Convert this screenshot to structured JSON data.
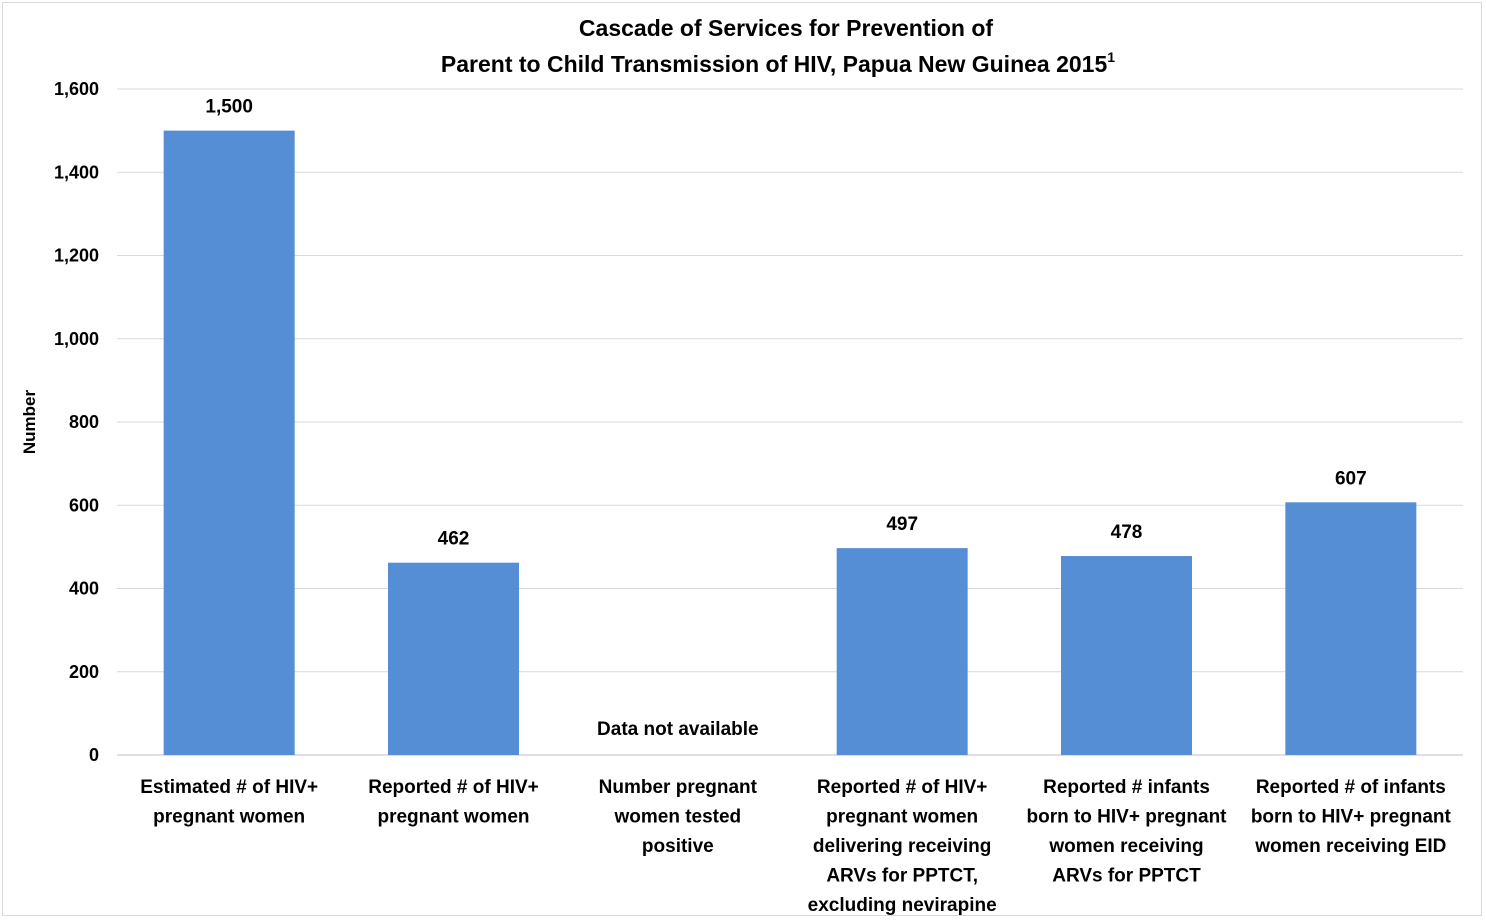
{
  "chart_data": {
    "type": "bar",
    "title_lines": [
      "Cascade of Services for Prevention of",
      "Parent to Child Transmission of HIV, Papua New Guinea 2015"
    ],
    "title_superscript": "1",
    "ylabel": "Number",
    "xlabel": "",
    "ylim": [
      0,
      1600
    ],
    "yticks": [
      0,
      200,
      400,
      600,
      800,
      1000,
      1200,
      1400,
      1600
    ],
    "ytick_labels": [
      "0",
      "200",
      "400",
      "600",
      "800",
      "1,000",
      "1,200",
      "1,400",
      "1,600"
    ],
    "grid": true,
    "bar_color": "#558ed5",
    "categories": [
      [
        "Estimated # of HIV+",
        "pregnant women"
      ],
      [
        "Reported # of HIV+",
        "pregnant women"
      ],
      [
        "Number pregnant",
        "women tested",
        "positive"
      ],
      [
        "Reported # of HIV+",
        "pregnant women",
        "delivering receiving",
        "ARVs for PPTCT,",
        "excluding nevirapine"
      ],
      [
        "Reported # infants",
        "born to HIV+ pregnant",
        "women receiving",
        "ARVs for PPTCT"
      ],
      [
        "Reported # of infants",
        "born to HIV+ pregnant",
        "women receiving EID"
      ]
    ],
    "values": [
      1500,
      462,
      null,
      497,
      478,
      607
    ],
    "data_labels": [
      "1,500",
      "462",
      "Data not available",
      "497",
      "478",
      "607"
    ]
  }
}
